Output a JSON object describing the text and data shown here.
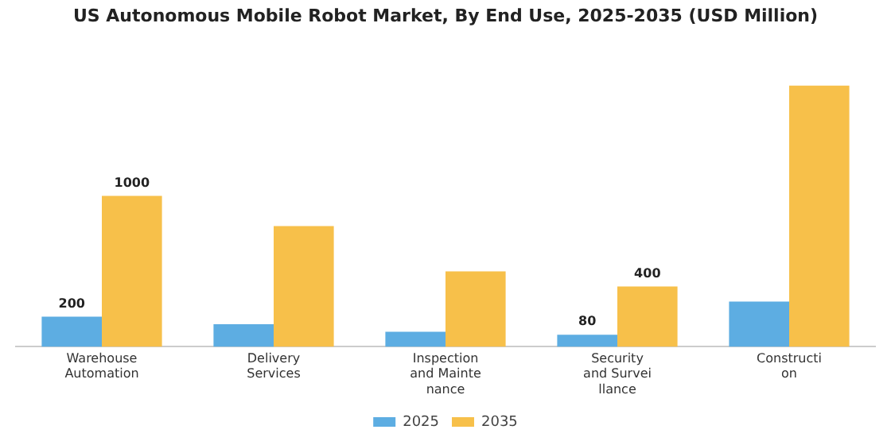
{
  "chart_data": {
    "type": "bar",
    "title": "US Autonomous Mobile Robot Market, By End Use, 2025-2035 (USD Million)",
    "categories": [
      "Warehouse\nAutomation",
      "Delivery\nServices",
      "Inspection\nand Mainte\nnance",
      "Security\nand Survei\nllance",
      "Constructi\non"
    ],
    "series": [
      {
        "name": "2025",
        "color": "#5dade2",
        "values": [
          200,
          150,
          100,
          80,
          300
        ],
        "value_labels": [
          "200",
          null,
          null,
          "80",
          null
        ]
      },
      {
        "name": "2035",
        "color": "#f7c04a",
        "values": [
          1000,
          800,
          500,
          400,
          1730
        ],
        "value_labels": [
          "1000",
          null,
          null,
          "400",
          null
        ]
      }
    ],
    "legend": "bottom",
    "grid": false
  }
}
